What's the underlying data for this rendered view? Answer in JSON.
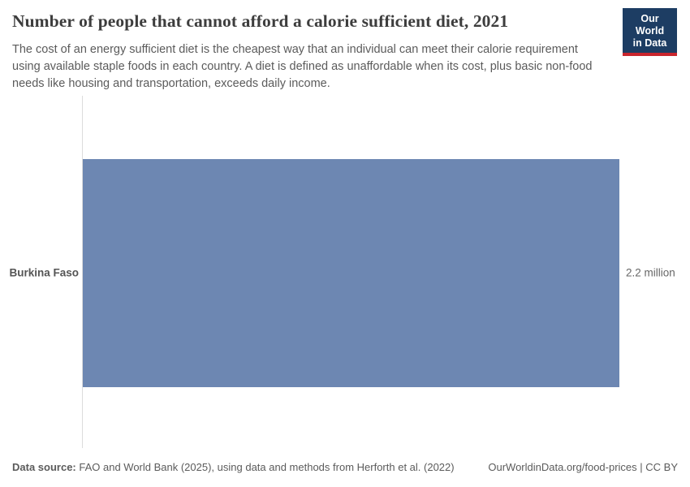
{
  "header": {
    "title": "Number of people that cannot afford a calorie sufficient diet, 2021",
    "subtitle": "The cost of an energy sufficient diet is the cheapest way that an individual can meet their calorie requirement using available staple foods in each country. A diet is defined as unaffordable when its cost, plus basic non-food needs like housing and transportation, exceeds daily income.",
    "logo": {
      "line1": "Our World",
      "line2": "in Data"
    }
  },
  "chart_data": {
    "type": "bar",
    "orientation": "horizontal",
    "title": "Number of people that cannot afford a calorie sufficient diet, 2021",
    "year": "2021",
    "categories": [
      "Burkina Faso"
    ],
    "values": [
      2200000
    ],
    "value_labels": [
      "2.2 million"
    ],
    "xlabel": "",
    "ylabel": "",
    "xlim": [
      0,
      2200000
    ],
    "grid": false,
    "legend": "none",
    "bar_color": "#6d87b2",
    "axis_line_color": "#dcdcdc"
  },
  "footer": {
    "data_source_label": "Data source:",
    "data_source_text": " FAO and World Bank (2025), using data and methods from Herforth et al. (2022)",
    "link_text": "OurWorldinData.org/food-prices | CC BY"
  },
  "colors": {
    "title_text": "#3d3d3d",
    "subtitle_text": "#5b5b5b",
    "bar": "#6d87b2",
    "logo_navy": "#1d3d63",
    "logo_red": "#c9252d"
  }
}
